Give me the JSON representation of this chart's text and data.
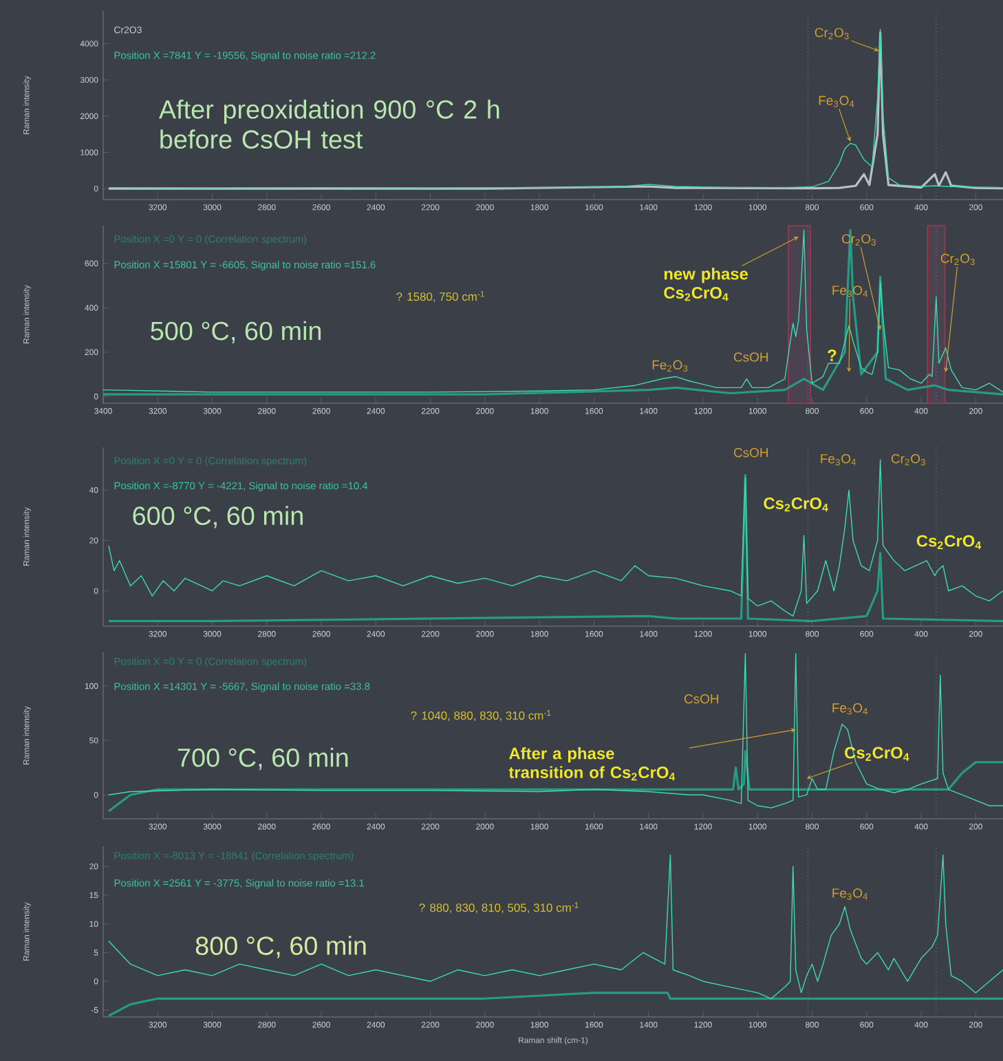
{
  "chart_data": [
    {
      "type": "line",
      "xlim": [
        3400,
        100
      ],
      "xticks": [
        3200,
        3000,
        2800,
        2600,
        2400,
        2200,
        2000,
        1800,
        1600,
        1400,
        1200,
        1000,
        800,
        600,
        400,
        200
      ],
      "ylim": [
        -300,
        4900
      ],
      "yticks": [
        0,
        1000,
        2000,
        3000,
        4000
      ],
      "ylabel": "Raman intensity",
      "series": [
        {
          "color": "#b8c0c8",
          "x": [
            3380,
            2000,
            1400,
            1300,
            800,
            700,
            640,
            610,
            590,
            560,
            550,
            540,
            520,
            400,
            350,
            335,
            310,
            290,
            200,
            100
          ],
          "values": [
            0,
            0,
            60,
            20,
            10,
            20,
            80,
            400,
            100,
            1500,
            4300,
            1500,
            100,
            30,
            400,
            80,
            450,
            80,
            20,
            10
          ]
        },
        {
          "color": "#3ddcb2",
          "x": [
            3380,
            3000,
            2600,
            2200,
            1800,
            1500,
            1400,
            1300,
            1100,
            900,
            800,
            740,
            700,
            680,
            660,
            640,
            610,
            580,
            560,
            550,
            540,
            520,
            480,
            400,
            350,
            300,
            200,
            100
          ],
          "values": [
            30,
            20,
            30,
            20,
            30,
            50,
            120,
            60,
            30,
            30,
            50,
            200,
            700,
            1100,
            1250,
            1200,
            800,
            600,
            2500,
            4400,
            2000,
            300,
            100,
            60,
            80,
            60,
            40,
            30
          ]
        }
      ],
      "ref_lines": [
        {
          "axis": "x",
          "value": 815,
          "color": "#8a9099",
          "line_style": "dotted"
        },
        {
          "axis": "x",
          "value": 345,
          "color": "#8a9099",
          "line_style": "dotted"
        }
      ],
      "annotations": [
        "Cr2O3",
        "Position X =7841 Y = -19556, Signal to noise ratio =212.2",
        "After preoxidation 900 °C 2 h before CsOH test",
        {
          "text": "Cr$_{2}$O$_{3}$",
          "x": 555,
          "y": 3800
        },
        {
          "text": "Fe$_{3}$O$_{4}$",
          "x": 660,
          "y": 1300
        }
      ]
    },
    {
      "type": "line",
      "xlim": [
        3400,
        100
      ],
      "xticks": [
        3400,
        3200,
        3000,
        2800,
        2600,
        2400,
        2200,
        2000,
        1800,
        1600,
        1400,
        1200,
        1000,
        800,
        600,
        400,
        200
      ],
      "ylim": [
        -30,
        770
      ],
      "yticks": [
        0,
        200,
        400,
        600
      ],
      "ylabel": "Raman intensity",
      "series": [
        {
          "color": "#2a9a88",
          "x": [
            3400,
            2000,
            1400,
            1300,
            1100,
            900,
            830,
            760,
            680,
            660,
            650,
            620,
            560,
            550,
            530,
            450,
            350,
            300,
            100
          ],
          "values": [
            10,
            10,
            30,
            40,
            15,
            30,
            80,
            30,
            200,
            750,
            450,
            100,
            200,
            540,
            80,
            30,
            50,
            30,
            10
          ]
        },
        {
          "color": "#3ddcb2",
          "x": [
            3400,
            3000,
            2600,
            2200,
            1800,
            1600,
            1450,
            1350,
            1300,
            1250,
            1150,
            1060,
            1040,
            1020,
            960,
            900,
            880,
            870,
            860,
            850,
            840,
            830,
            820,
            800,
            760,
            740,
            700,
            665,
            650,
            620,
            600,
            580,
            560,
            550,
            540,
            520,
            480,
            440,
            400,
            370,
            360,
            345,
            335,
            310,
            290,
            250,
            200,
            150,
            100
          ],
          "values": [
            30,
            20,
            20,
            20,
            25,
            30,
            50,
            80,
            90,
            70,
            40,
            40,
            80,
            40,
            40,
            80,
            250,
            330,
            270,
            340,
            520,
            750,
            300,
            60,
            90,
            150,
            150,
            320,
            250,
            130,
            110,
            100,
            200,
            520,
            350,
            130,
            120,
            80,
            60,
            100,
            90,
            450,
            150,
            220,
            120,
            40,
            30,
            60,
            20
          ]
        }
      ],
      "ref_lines": [
        {
          "axis": "x",
          "value": 815,
          "color": "#8a9099",
          "line_style": "dotted"
        },
        {
          "axis": "x",
          "value": 345,
          "color": "#8a9099",
          "line_style": "dotted"
        }
      ],
      "bands": [
        {
          "axis": "x",
          "from": 887,
          "to": 806,
          "color": "#b0304a"
        },
        {
          "axis": "x",
          "from": 377,
          "to": 313,
          "color": "#b0304a"
        }
      ],
      "annotations": [
        "Position X =0 Y = 0 (Correlation spectrum)",
        "Position X =15801 Y = -6605, Signal to noise ratio =151.6",
        "? 1580, 750 cm$^{-1}$",
        "500 °C, 60 min",
        "Fe$_{2}$O$_{3}$",
        "CsOH",
        {
          "text": "new phase Cs$_{2}$CrO$_{4}$",
          "x": 850,
          "y": 720
        },
        {
          "text": "Cr$_{2}$O$_{3}$",
          "x": 550,
          "y": 300
        },
        {
          "text": "Fe$_{3}$O$_{4}$",
          "x": 665,
          "y": 110
        },
        "?",
        {
          "text": "Cr$_{2}$O$_{3}$",
          "x": 310,
          "y": 110
        }
      ]
    },
    {
      "type": "line",
      "xlim": [
        3400,
        100
      ],
      "xticks": [
        3200,
        3000,
        2800,
        2600,
        2400,
        2200,
        2000,
        1800,
        1600,
        1400,
        1200,
        1000,
        800,
        600,
        400,
        200
      ],
      "ylim": [
        -14,
        57
      ],
      "yticks": [
        0,
        20,
        40
      ],
      "ylabel": "Raman intensity",
      "series": [
        {
          "color": "#2a9a88",
          "x": [
            3380,
            3000,
            1400,
            1300,
            1060,
            1045,
            1035,
            800,
            600,
            560,
            550,
            540,
            100
          ],
          "values": [
            -12,
            -12,
            -10,
            -11,
            -11,
            46,
            -11,
            -12,
            -10,
            0,
            15,
            -11,
            -12
          ]
        },
        {
          "color": "#3ddcb2",
          "x": [
            3380,
            3360,
            3340,
            3300,
            3260,
            3220,
            3180,
            3140,
            3100,
            3000,
            2960,
            2900,
            2800,
            2700,
            2600,
            2500,
            2400,
            2300,
            2200,
            2100,
            2000,
            1900,
            1800,
            1700,
            1600,
            1500,
            1450,
            1400,
            1300,
            1200,
            1100,
            1060,
            1045,
            1035,
            1000,
            950,
            900,
            870,
            840,
            830,
            820,
            780,
            750,
            720,
            700,
            680,
            665,
            650,
            620,
            590,
            560,
            550,
            540,
            500,
            460,
            420,
            380,
            350,
            340,
            320,
            300,
            250,
            200,
            150,
            100
          ],
          "values": [
            18,
            8,
            12,
            2,
            6,
            -2,
            4,
            0,
            5,
            0,
            4,
            2,
            6,
            2,
            8,
            4,
            6,
            2,
            6,
            3,
            5,
            2,
            6,
            4,
            8,
            4,
            10,
            6,
            5,
            2,
            0,
            -2,
            45,
            -3,
            -6,
            -4,
            -8,
            -10,
            0,
            22,
            -5,
            0,
            12,
            0,
            10,
            25,
            40,
            20,
            10,
            8,
            20,
            52,
            18,
            12,
            8,
            10,
            12,
            6,
            8,
            10,
            0,
            2,
            -2,
            -4,
            0
          ]
        }
      ],
      "ref_lines": [
        {
          "axis": "x",
          "value": 815,
          "color": "#8a9099",
          "line_style": "dotted"
        },
        {
          "axis": "x",
          "value": 345,
          "color": "#8a9099",
          "line_style": "dotted"
        }
      ],
      "annotations": [
        "Position X =0 Y = 0 (Correlation spectrum)",
        "Position X =-8770 Y = -4221, Signal to noise ratio =10.4",
        "600 °C, 60 min",
        "CsOH",
        "Fe$_{3}$O$_{4}$",
        "Cr$_{2}$O$_{3}$",
        "Cs$_{2}$CrO$_{4}$",
        "Cs$_{2}$CrO$_{4}$"
      ]
    },
    {
      "type": "line",
      "xlim": [
        3400,
        100
      ],
      "xticks": [
        3200,
        3000,
        2800,
        2600,
        2400,
        2200,
        2000,
        1800,
        1600,
        1400,
        1200,
        1000,
        800,
        600,
        400,
        200
      ],
      "ylim": [
        -22,
        131
      ],
      "yticks": [
        0,
        50,
        100
      ],
      "ylabel": "Raman intensity",
      "series": [
        {
          "color": "#2a9a88",
          "x": [
            3380,
            3300,
            3200,
            1200,
            1090,
            1080,
            1070,
            1050,
            1045,
            1030,
            800,
            600,
            400,
            300,
            250,
            200,
            100
          ],
          "values": [
            -15,
            0,
            5,
            5,
            5,
            25,
            5,
            10,
            40,
            5,
            5,
            5,
            5,
            5,
            20,
            30,
            30
          ]
        },
        {
          "color": "#3ddcb2",
          "x": [
            3380,
            3300,
            3000,
            2600,
            2200,
            1800,
            1600,
            1400,
            1250,
            1200,
            1100,
            1060,
            1045,
            1035,
            1000,
            950,
            900,
            870,
            860,
            850,
            820,
            800,
            780,
            750,
            720,
            690,
            670,
            640,
            600,
            550,
            500,
            450,
            400,
            340,
            330,
            320,
            300,
            250,
            200,
            150,
            100
          ],
          "values": [
            0,
            3,
            5,
            4,
            4,
            3,
            5,
            3,
            0,
            0,
            -5,
            -8,
            130,
            -5,
            -10,
            -12,
            -8,
            -5,
            130,
            -2,
            0,
            15,
            5,
            5,
            40,
            65,
            60,
            30,
            10,
            5,
            2,
            5,
            10,
            15,
            110,
            20,
            5,
            0,
            -5,
            -10,
            -10
          ]
        }
      ],
      "ref_lines": [
        {
          "axis": "x",
          "value": 815,
          "color": "#8a9099",
          "line_style": "dotted"
        },
        {
          "axis": "x",
          "value": 345,
          "color": "#8a9099",
          "line_style": "dotted"
        }
      ],
      "annotations": [
        "Position X =0 Y = 0 (Correlation spectrum)",
        "Position X =14301 Y = -5667, Signal to noise ratio =33.8",
        "? 1040, 880, 830, 310 cm$^{-1}$",
        "700 °C, 60 min",
        "CsOH",
        "Fe$_{3}$O$_{4}$",
        {
          "text": "Cs$_{2}$CrO$_{4}$",
          "x": 820,
          "y": 15
        },
        {
          "text": "After a phase transition of Cs$_{2}$CrO$_{4}$",
          "x": 860,
          "y": 60
        }
      ]
    },
    {
      "type": "line",
      "xlim": [
        3400,
        100
      ],
      "xticks": [
        3200,
        3000,
        2800,
        2600,
        2400,
        2200,
        2000,
        1800,
        1600,
        1400,
        1200,
        1000,
        800,
        600,
        400,
        200
      ],
      "ylim": [
        -6.2,
        23.5
      ],
      "yticks": [
        -5,
        0,
        5,
        10,
        15,
        20
      ],
      "ylabel": "Raman intensity",
      "xlabel": "Raman shift (cm-1)",
      "series": [
        {
          "color": "#2a9a88",
          "x": [
            3380,
            3300,
            3200,
            2000,
            1600,
            1400,
            1330,
            1320,
            800,
            100
          ],
          "values": [
            -6,
            -4,
            -3,
            -3,
            -2,
            -2,
            -2,
            -3,
            -3,
            -3
          ]
        },
        {
          "color": "#3ddcb2",
          "x": [
            3380,
            3340,
            3300,
            3250,
            3200,
            3100,
            3000,
            2900,
            2800,
            2700,
            2600,
            2500,
            2400,
            2300,
            2200,
            2100,
            2000,
            1900,
            1800,
            1700,
            1600,
            1500,
            1420,
            1380,
            1340,
            1320,
            1310,
            1250,
            1200,
            1100,
            1000,
            950,
            900,
            880,
            870,
            860,
            840,
            820,
            800,
            780,
            760,
            730,
            700,
            680,
            660,
            620,
            600,
            560,
            520,
            500,
            450,
            400,
            360,
            340,
            320,
            310,
            290,
            250,
            200,
            150,
            100
          ],
          "values": [
            7,
            5,
            3,
            2,
            1,
            2,
            1,
            3,
            2,
            1,
            3,
            1,
            2,
            1,
            0,
            2,
            1,
            2,
            1,
            2,
            3,
            2,
            5,
            4,
            3,
            22,
            2,
            1,
            0,
            -1,
            -2,
            -3,
            -1,
            0,
            20,
            2,
            -2,
            1,
            3,
            0,
            3,
            8,
            10,
            13,
            9,
            4,
            3,
            5,
            2,
            4,
            0,
            4,
            6,
            8,
            22,
            10,
            1,
            0,
            -2,
            0,
            2
          ]
        }
      ],
      "ref_lines": [
        {
          "axis": "x",
          "value": 815,
          "color": "#8a9099",
          "line_style": "dotted"
        },
        {
          "axis": "x",
          "value": 345,
          "color": "#8a9099",
          "line_style": "dotted"
        }
      ],
      "annotations": [
        "Position X =-8013 Y = -18841 (Correlation spectrum)",
        "Position X =2561 Y = -3775, Signal to noise ratio =13.1",
        "? 880, 830, 810, 505, 310 cm$^{-1}$",
        "800 °C, 60 min",
        "Fe$_{3}$O$_{4}$"
      ]
    }
  ]
}
